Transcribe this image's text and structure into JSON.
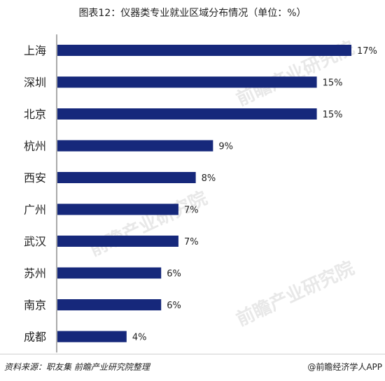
{
  "colors": {
    "bar": "#16287b",
    "text": "#222222",
    "axis": "#555555"
  },
  "watermark": "前瞻产业研究院",
  "footer": {
    "source": "资料来源：职友集 前瞻产业研究院整理",
    "credit": "@前瞻经济学人APP"
  },
  "chart_data": {
    "type": "bar",
    "orientation": "horizontal",
    "title": "图表12：仪器类专业就业区域分布情况（单位：%）",
    "categories": [
      "上海",
      "深圳",
      "北京",
      "杭州",
      "西安",
      "广州",
      "武汉",
      "苏州",
      "南京",
      "成都"
    ],
    "values": [
      17,
      15,
      15,
      9,
      8,
      7,
      7,
      6,
      6,
      4
    ],
    "data_labels": [
      "17%",
      "15%",
      "15%",
      "9%",
      "8%",
      "7%",
      "7%",
      "6%",
      "6%",
      "4%"
    ],
    "xlim": [
      0,
      17
    ],
    "grid": false,
    "legend": "none"
  }
}
